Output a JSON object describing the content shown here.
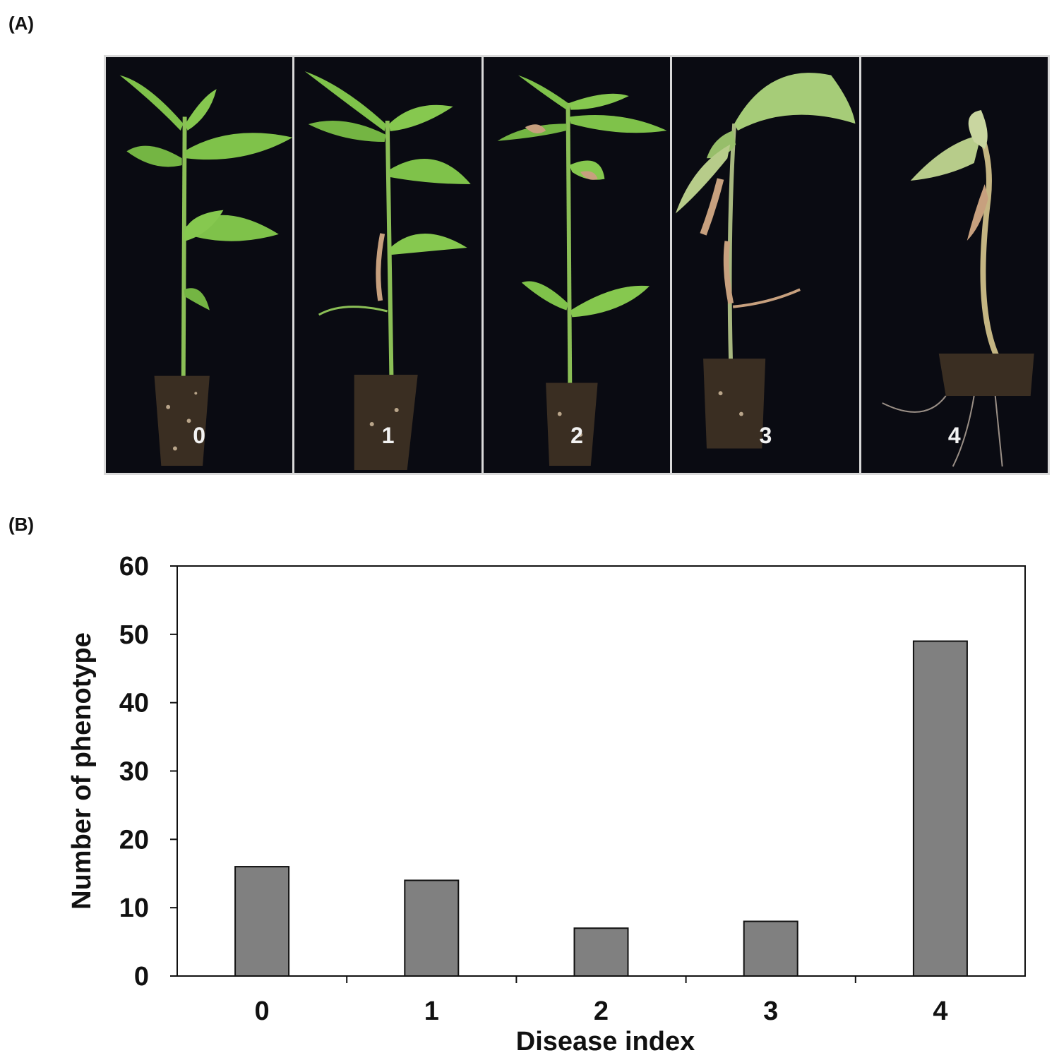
{
  "panels": {
    "a_label": "(A)",
    "b_label": "(B)"
  },
  "photos": [
    {
      "index": "0"
    },
    {
      "index": "1"
    },
    {
      "index": "2"
    },
    {
      "index": "3"
    },
    {
      "index": "4"
    }
  ],
  "colors": {
    "bar": "#808080",
    "photo_background": "#0a0b12",
    "leaf": "#7fc24a",
    "stem": "#8bbf56",
    "wilted": "#c7a07e"
  },
  "chart_data": {
    "type": "bar",
    "categories": [
      "0",
      "1",
      "2",
      "3",
      "4"
    ],
    "values": [
      16,
      14,
      7,
      8,
      49
    ],
    "xlabel": "Disease index",
    "ylabel": "Number of phenotype",
    "ylim": [
      0,
      60
    ],
    "yticks": [
      0,
      10,
      20,
      30,
      40,
      50,
      60
    ],
    "grid": false
  }
}
